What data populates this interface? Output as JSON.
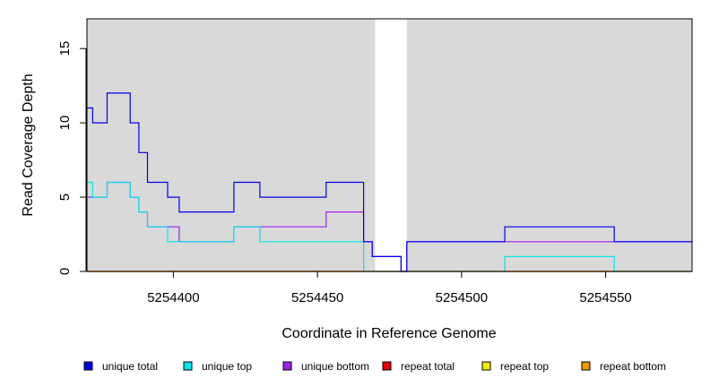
{
  "chart_data": {
    "type": "line",
    "title": "",
    "xlabel": "Coordinate in Reference Genome",
    "ylabel": "Read Coverage Depth",
    "xlim": [
      5254370,
      5254580
    ],
    "ylim": [
      0,
      17
    ],
    "x_ticks": [
      5254400,
      5254450,
      5254500,
      5254550
    ],
    "y_ticks": [
      0,
      5,
      10,
      15
    ],
    "shaded_regions": [
      [
        5254370,
        5254470
      ],
      [
        5254481,
        5254580
      ]
    ],
    "legend_position": "bottom",
    "series": [
      {
        "name": "unique total",
        "color": "#0000EE",
        "steps": [
          [
            5254370,
            11
          ],
          [
            5254372,
            10
          ],
          [
            5254377,
            12
          ],
          [
            5254385,
            10
          ],
          [
            5254388,
            8
          ],
          [
            5254391,
            6
          ],
          [
            5254398,
            5
          ],
          [
            5254402,
            4
          ],
          [
            5254421,
            6
          ],
          [
            5254430,
            5
          ],
          [
            5254453,
            6
          ],
          [
            5254466,
            2
          ],
          [
            5254469,
            1
          ],
          [
            5254479,
            0
          ],
          [
            5254481,
            2
          ],
          [
            5254515,
            3
          ],
          [
            5254553,
            2
          ],
          [
            5254580,
            2
          ]
        ]
      },
      {
        "name": "unique top",
        "color": "#00E5EE",
        "steps": [
          [
            5254370,
            6
          ],
          [
            5254372,
            5
          ],
          [
            5254377,
            6
          ],
          [
            5254385,
            5
          ],
          [
            5254388,
            4
          ],
          [
            5254391,
            3
          ],
          [
            5254398,
            2
          ],
          [
            5254402,
            2
          ],
          [
            5254421,
            3
          ],
          [
            5254430,
            2
          ],
          [
            5254466,
            0
          ],
          [
            5254515,
            1
          ],
          [
            5254553,
            0
          ],
          [
            5254580,
            0
          ]
        ]
      },
      {
        "name": "unique bottom",
        "color": "#A020F0",
        "steps": [
          [
            5254370,
            5
          ],
          [
            5254377,
            6
          ],
          [
            5254385,
            5
          ],
          [
            5254388,
            4
          ],
          [
            5254391,
            3
          ],
          [
            5254398,
            3
          ],
          [
            5254402,
            2
          ],
          [
            5254421,
            3
          ],
          [
            5254453,
            4
          ],
          [
            5254466,
            2
          ],
          [
            5254469,
            1
          ],
          [
            5254479,
            0
          ],
          [
            5254481,
            2
          ],
          [
            5254580,
            2
          ]
        ]
      },
      {
        "name": "repeat total",
        "color": "#EE0000",
        "steps": [
          [
            5254370,
            0
          ],
          [
            5254580,
            0
          ]
        ]
      },
      {
        "name": "repeat top",
        "color": "#EEEE00",
        "steps": [
          [
            5254370,
            0
          ],
          [
            5254580,
            0
          ]
        ]
      },
      {
        "name": "repeat bottom",
        "color": "#EE9A00",
        "steps": [
          [
            5254370,
            0
          ],
          [
            5254580,
            0
          ]
        ]
      }
    ]
  }
}
